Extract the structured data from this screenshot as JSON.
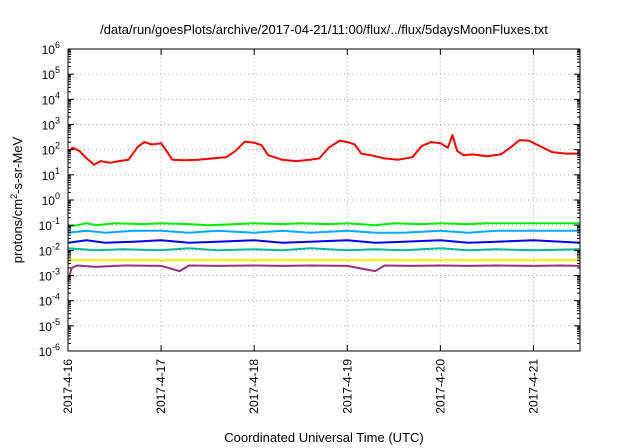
{
  "chart_data": {
    "type": "line",
    "title": "/data/run/goesPlots/archive/2017-04-21/11:00/flux/../flux/5daysMoonFluxes.txt",
    "xlabel": "Coordinated Universal Time (UTC)",
    "ylabel": "protons/cm2-s-sr-MeV",
    "ylabel_parts": {
      "pre": "protons/cm",
      "sup": "2",
      "post": "-s-sr-MeV"
    },
    "yscale": "log",
    "ylim_exp": [
      -6,
      6
    ],
    "yticks_exp": [
      -6,
      -5,
      -4,
      -3,
      -2,
      -1,
      0,
      1,
      2,
      3,
      4,
      5,
      6
    ],
    "ytick_base": "10",
    "xlim_days": [
      0,
      5.5
    ],
    "xticks": [
      {
        "day": 0,
        "label": "2017-4-16"
      },
      {
        "day": 1,
        "label": "2017-4-17"
      },
      {
        "day": 2,
        "label": "2017-4-18"
      },
      {
        "day": 3,
        "label": "2017-4-19"
      },
      {
        "day": 4,
        "label": "2017-4-20"
      },
      {
        "day": 5,
        "label": "2017-4-21"
      }
    ],
    "grid": true,
    "series": [
      {
        "color": "#ff0000",
        "points": [
          [
            0.0,
            80
          ],
          [
            0.05,
            120
          ],
          [
            0.12,
            90
          ],
          [
            0.2,
            45
          ],
          [
            0.28,
            25
          ],
          [
            0.35,
            35
          ],
          [
            0.45,
            30
          ],
          [
            0.55,
            35
          ],
          [
            0.65,
            40
          ],
          [
            0.75,
            130
          ],
          [
            0.82,
            200
          ],
          [
            0.9,
            160
          ],
          [
            1.0,
            180
          ],
          [
            1.05,
            100
          ],
          [
            1.12,
            40
          ],
          [
            1.25,
            38
          ],
          [
            1.4,
            40
          ],
          [
            1.55,
            45
          ],
          [
            1.7,
            50
          ],
          [
            1.8,
            90
          ],
          [
            1.9,
            210
          ],
          [
            2.0,
            190
          ],
          [
            2.08,
            150
          ],
          [
            2.15,
            60
          ],
          [
            2.3,
            40
          ],
          [
            2.45,
            35
          ],
          [
            2.6,
            40
          ],
          [
            2.7,
            45
          ],
          [
            2.8,
            120
          ],
          [
            2.92,
            230
          ],
          [
            3.0,
            200
          ],
          [
            3.08,
            160
          ],
          [
            3.15,
            70
          ],
          [
            3.25,
            60
          ],
          [
            3.4,
            45
          ],
          [
            3.55,
            40
          ],
          [
            3.7,
            50
          ],
          [
            3.8,
            140
          ],
          [
            3.9,
            200
          ],
          [
            4.0,
            180
          ],
          [
            4.08,
            120
          ],
          [
            4.13,
            380
          ],
          [
            4.18,
            90
          ],
          [
            4.25,
            60
          ],
          [
            4.35,
            65
          ],
          [
            4.5,
            55
          ],
          [
            4.65,
            65
          ],
          [
            4.75,
            120
          ],
          [
            4.85,
            240
          ],
          [
            4.95,
            230
          ],
          [
            5.05,
            150
          ],
          [
            5.2,
            80
          ],
          [
            5.35,
            70
          ],
          [
            5.5,
            70
          ]
        ]
      },
      {
        "color": "#00ee00",
        "points": [
          [
            0.0,
            0.09
          ],
          [
            0.1,
            0.1
          ],
          [
            0.2,
            0.12
          ],
          [
            0.3,
            0.1
          ],
          [
            0.5,
            0.12
          ],
          [
            0.8,
            0.11
          ],
          [
            1.0,
            0.12
          ],
          [
            1.3,
            0.11
          ],
          [
            1.5,
            0.1
          ],
          [
            1.8,
            0.11
          ],
          [
            2.0,
            0.12
          ],
          [
            2.3,
            0.11
          ],
          [
            2.5,
            0.12
          ],
          [
            2.8,
            0.11
          ],
          [
            3.0,
            0.12
          ],
          [
            3.3,
            0.1
          ],
          [
            3.5,
            0.12
          ],
          [
            3.8,
            0.11
          ],
          [
            4.0,
            0.12
          ],
          [
            4.3,
            0.11
          ],
          [
            4.5,
            0.12
          ],
          [
            4.8,
            0.12
          ],
          [
            5.0,
            0.12
          ],
          [
            5.3,
            0.12
          ],
          [
            5.5,
            0.12
          ]
        ]
      },
      {
        "color": "#00aaff",
        "points": [
          [
            0.0,
            0.05
          ],
          [
            0.2,
            0.06
          ],
          [
            0.4,
            0.05
          ],
          [
            0.7,
            0.06
          ],
          [
            1.0,
            0.06
          ],
          [
            1.3,
            0.05
          ],
          [
            1.6,
            0.06
          ],
          [
            2.0,
            0.05
          ],
          [
            2.3,
            0.06
          ],
          [
            2.6,
            0.05
          ],
          [
            3.0,
            0.06
          ],
          [
            3.3,
            0.05
          ],
          [
            3.6,
            0.05
          ],
          [
            4.0,
            0.06
          ],
          [
            4.3,
            0.05
          ],
          [
            4.6,
            0.06
          ],
          [
            5.0,
            0.06
          ],
          [
            5.5,
            0.06
          ]
        ]
      },
      {
        "color": "#0000ff",
        "points": [
          [
            0.0,
            0.02
          ],
          [
            0.2,
            0.025
          ],
          [
            0.4,
            0.02
          ],
          [
            0.7,
            0.022
          ],
          [
            1.0,
            0.025
          ],
          [
            1.3,
            0.02
          ],
          [
            1.6,
            0.022
          ],
          [
            2.0,
            0.025
          ],
          [
            2.3,
            0.02
          ],
          [
            2.6,
            0.022
          ],
          [
            3.0,
            0.025
          ],
          [
            3.3,
            0.02
          ],
          [
            3.6,
            0.022
          ],
          [
            4.0,
            0.025
          ],
          [
            4.3,
            0.02
          ],
          [
            4.6,
            0.022
          ],
          [
            5.0,
            0.025
          ],
          [
            5.5,
            0.02
          ]
        ]
      },
      {
        "color": "#00bb99",
        "points": [
          [
            0.0,
            0.012
          ],
          [
            0.3,
            0.01
          ],
          [
            0.6,
            0.011
          ],
          [
            1.0,
            0.01
          ],
          [
            1.3,
            0.012
          ],
          [
            1.6,
            0.01
          ],
          [
            2.0,
            0.011
          ],
          [
            2.3,
            0.01
          ],
          [
            2.6,
            0.012
          ],
          [
            3.0,
            0.01
          ],
          [
            3.3,
            0.011
          ],
          [
            3.6,
            0.01
          ],
          [
            4.0,
            0.012
          ],
          [
            4.3,
            0.01
          ],
          [
            4.6,
            0.011
          ],
          [
            5.0,
            0.01
          ],
          [
            5.5,
            0.011
          ]
        ]
      },
      {
        "color": "#eeee00",
        "points": [
          [
            0.0,
            0.004
          ],
          [
            1.0,
            0.004
          ],
          [
            2.0,
            0.004
          ],
          [
            3.0,
            0.004
          ],
          [
            4.0,
            0.004
          ],
          [
            5.0,
            0.004
          ],
          [
            5.5,
            0.004
          ]
        ]
      },
      {
        "color": "#993377",
        "points": [
          [
            0.0,
            0.0006
          ],
          [
            0.04,
            0.002
          ],
          [
            0.1,
            0.0025
          ],
          [
            0.3,
            0.0022
          ],
          [
            0.6,
            0.0025
          ],
          [
            1.0,
            0.0024
          ],
          [
            1.2,
            0.0015
          ],
          [
            1.3,
            0.0025
          ],
          [
            1.6,
            0.0024
          ],
          [
            2.0,
            0.0025
          ],
          [
            2.3,
            0.0024
          ],
          [
            2.6,
            0.0025
          ],
          [
            3.0,
            0.0024
          ],
          [
            3.3,
            0.0015
          ],
          [
            3.4,
            0.0025
          ],
          [
            3.7,
            0.0024
          ],
          [
            4.0,
            0.0025
          ],
          [
            4.3,
            0.0024
          ],
          [
            4.6,
            0.0025
          ],
          [
            5.0,
            0.0024
          ],
          [
            5.3,
            0.0025
          ],
          [
            5.5,
            0.0024
          ]
        ]
      }
    ]
  }
}
